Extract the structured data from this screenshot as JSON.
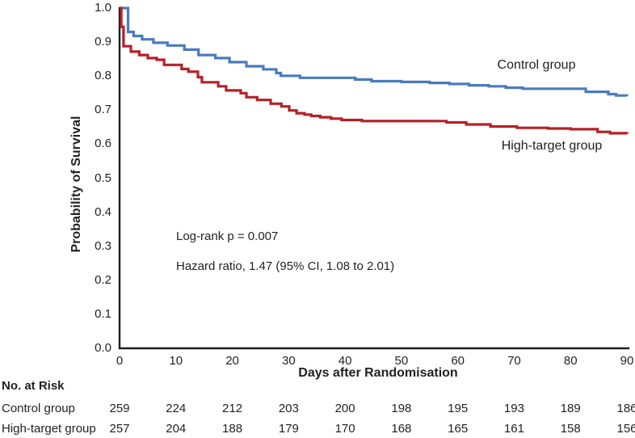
{
  "chart_data": {
    "type": "line",
    "subtype": "kaplan-meier-step",
    "title": "",
    "xlabel": "Days after Randomisation",
    "ylabel": "Probability of Survival",
    "xlim": [
      0,
      90
    ],
    "ylim": [
      0.0,
      1.0
    ],
    "x_ticks": [
      "0",
      "10",
      "20",
      "30",
      "40",
      "50",
      "60",
      "70",
      "80",
      "90"
    ],
    "y_ticks": [
      "1.0",
      "0.9",
      "0.8",
      "0.7",
      "0.6",
      "0.5",
      "0.4",
      "0.3",
      "0.2",
      "0.1",
      "0.0"
    ],
    "grid": false,
    "legend_position": "inline-labels-on-plot",
    "axis_color": "#1d1d1b",
    "series": [
      {
        "name": "Control group",
        "color": "#4a7bbd",
        "points": [
          [
            0,
            1.0
          ],
          [
            1.5,
            0.93
          ],
          [
            2.5,
            0.918
          ],
          [
            4,
            0.908
          ],
          [
            6,
            0.898
          ],
          [
            8.5,
            0.89
          ],
          [
            11.5,
            0.878
          ],
          [
            14,
            0.862
          ],
          [
            17,
            0.853
          ],
          [
            19.5,
            0.841
          ],
          [
            22.5,
            0.829
          ],
          [
            25.5,
            0.82
          ],
          [
            27.8,
            0.809
          ],
          [
            28.6,
            0.801
          ],
          [
            32,
            0.795
          ],
          [
            41.8,
            0.79
          ],
          [
            44.7,
            0.785
          ],
          [
            50,
            0.783
          ],
          [
            55,
            0.78
          ],
          [
            58.5,
            0.777
          ],
          [
            62,
            0.773
          ],
          [
            65.5,
            0.77
          ],
          [
            68.5,
            0.766
          ],
          [
            71.5,
            0.763
          ],
          [
            82.7,
            0.754
          ],
          [
            86.7,
            0.747
          ],
          [
            88.1,
            0.743
          ],
          [
            90,
            0.741
          ]
        ]
      },
      {
        "name": "High-target group",
        "color": "#b42127",
        "points": [
          [
            0,
            1.0
          ],
          [
            0.3,
            0.945
          ],
          [
            0.7,
            0.888
          ],
          [
            2,
            0.872
          ],
          [
            3.5,
            0.862
          ],
          [
            5,
            0.853
          ],
          [
            6.6,
            0.848
          ],
          [
            7.9,
            0.833
          ],
          [
            11,
            0.821
          ],
          [
            12.2,
            0.813
          ],
          [
            13.9,
            0.797
          ],
          [
            14.6,
            0.782
          ],
          [
            17.5,
            0.77
          ],
          [
            18.9,
            0.758
          ],
          [
            21.5,
            0.75
          ],
          [
            22.5,
            0.738
          ],
          [
            24.4,
            0.73
          ],
          [
            26.8,
            0.719
          ],
          [
            28.7,
            0.711
          ],
          [
            30.1,
            0.699
          ],
          [
            31.4,
            0.691
          ],
          [
            32.8,
            0.687
          ],
          [
            34,
            0.683
          ],
          [
            35.6,
            0.679
          ],
          [
            37.5,
            0.675
          ],
          [
            39.4,
            0.671
          ],
          [
            43,
            0.668
          ],
          [
            58,
            0.664
          ],
          [
            61.5,
            0.658
          ],
          [
            65.8,
            0.652
          ],
          [
            70.5,
            0.648
          ],
          [
            76,
            0.646
          ],
          [
            80,
            0.644
          ],
          [
            84.8,
            0.636
          ],
          [
            87,
            0.632
          ],
          [
            90,
            0.63
          ]
        ]
      }
    ],
    "annotations": [
      {
        "text": "Log-rank p = 0.007"
      },
      {
        "text": "Hazard ratio, 1.47 (95% CI, 1.08 to 2.01)"
      }
    ]
  },
  "risk_table": {
    "header": "No. at Risk",
    "days": [
      0,
      10,
      20,
      30,
      40,
      50,
      60,
      70,
      80,
      90
    ],
    "rows": [
      {
        "label": "Control group",
        "values": [
          "259",
          "224",
          "212",
          "203",
          "200",
          "198",
          "195",
          "193",
          "189",
          "186"
        ]
      },
      {
        "label": "High-target group",
        "values": [
          "257",
          "204",
          "188",
          "179",
          "170",
          "168",
          "165",
          "161",
          "158",
          "156"
        ]
      }
    ]
  }
}
